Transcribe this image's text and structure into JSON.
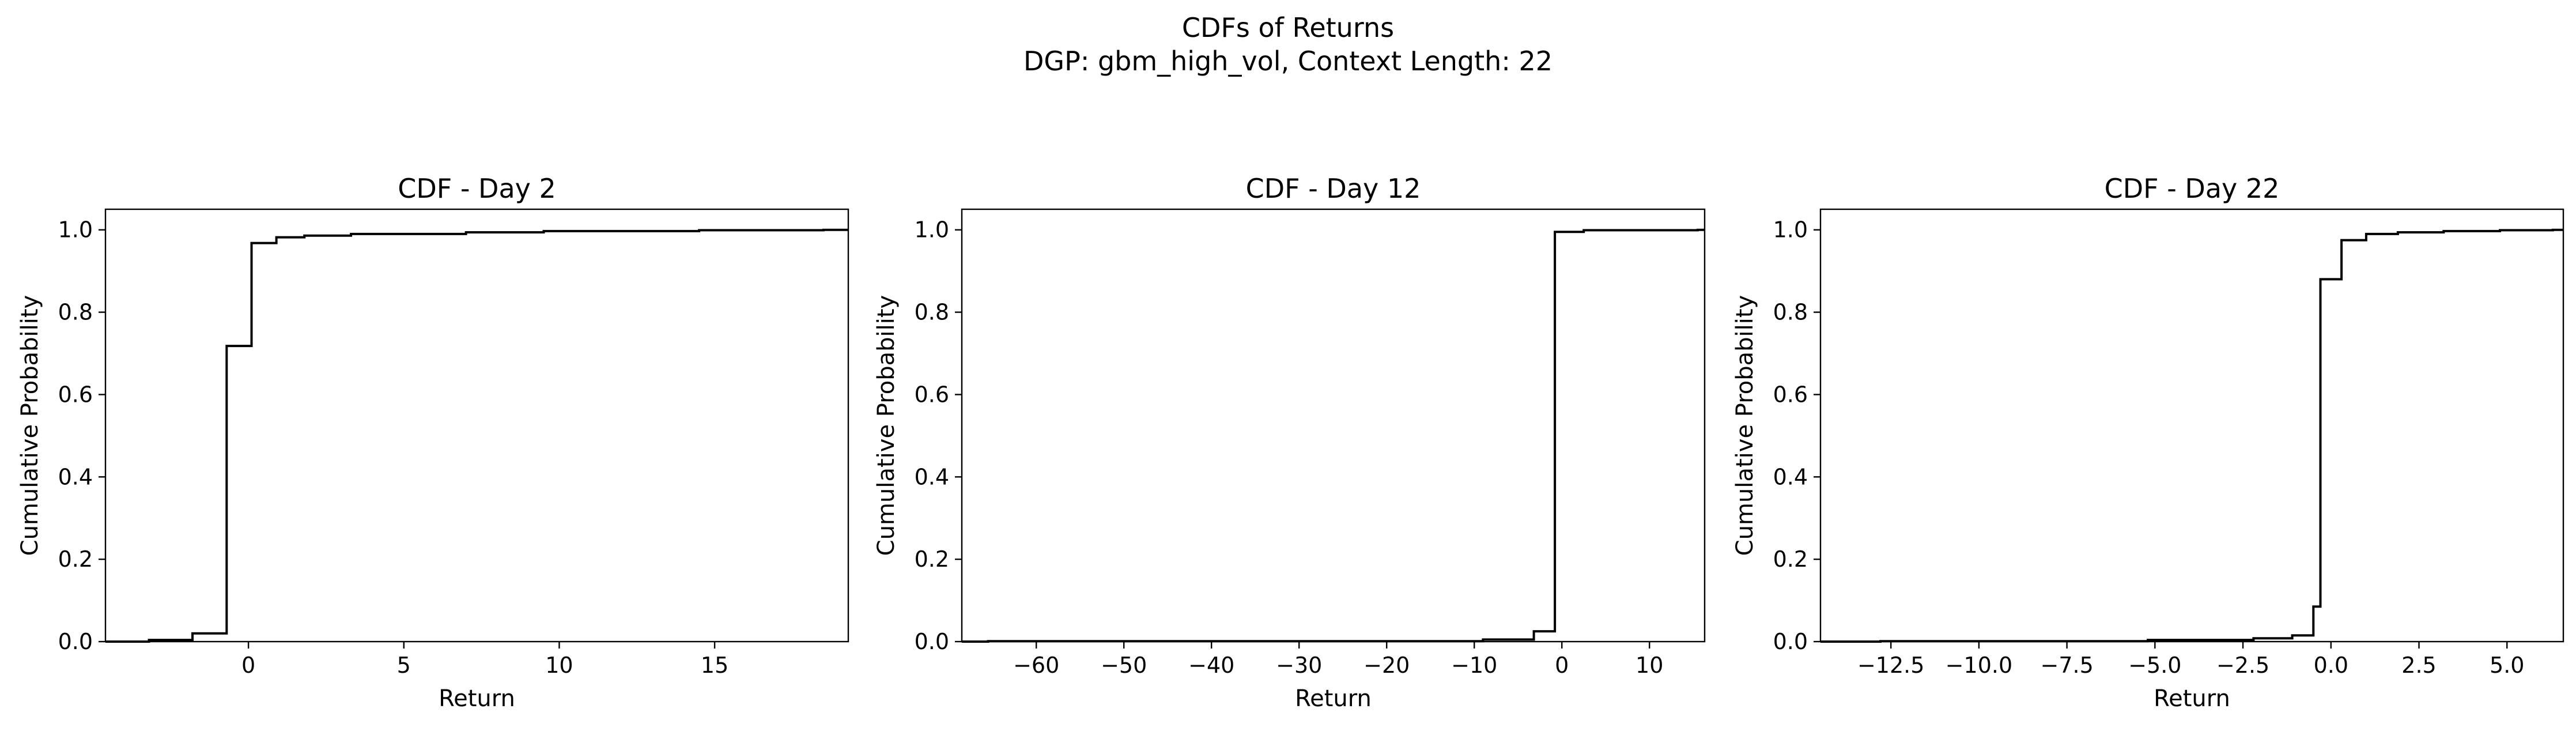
{
  "figure": {
    "title_line1": "CDFs of Returns",
    "title_line2": "DGP: gbm_high_vol, Context Length: 22"
  },
  "chart_data": [
    {
      "type": "line",
      "step": true,
      "title": "CDF - Day 2",
      "xlabel": "Return",
      "ylabel": "Cumulative Probability",
      "xlim": [
        -4.6,
        19.3
      ],
      "ylim": [
        0,
        1.05
      ],
      "xticks": [
        0,
        5,
        10,
        15
      ],
      "xtick_labels": [
        "0",
        "5",
        "10",
        "15"
      ],
      "yticks": [
        0.0,
        0.2,
        0.4,
        0.6,
        0.8,
        1.0
      ],
      "ytick_labels": [
        "0.0",
        "0.2",
        "0.4",
        "0.6",
        "0.8",
        "1.0"
      ],
      "grid": false,
      "line_color": "#000000",
      "points": [
        {
          "x": -4.6,
          "y": 0.0
        },
        {
          "x": -3.2,
          "y": 0.004
        },
        {
          "x": -1.8,
          "y": 0.02
        },
        {
          "x": -0.7,
          "y": 0.718
        },
        {
          "x": 0.1,
          "y": 0.968
        },
        {
          "x": 0.9,
          "y": 0.982
        },
        {
          "x": 1.8,
          "y": 0.986
        },
        {
          "x": 3.3,
          "y": 0.99
        },
        {
          "x": 7.0,
          "y": 0.994
        },
        {
          "x": 9.5,
          "y": 0.997
        },
        {
          "x": 14.5,
          "y": 0.999
        },
        {
          "x": 18.5,
          "y": 1.0
        },
        {
          "x": 19.3,
          "y": 1.0
        }
      ]
    },
    {
      "type": "line",
      "step": true,
      "title": "CDF - Day 12",
      "xlabel": "Return",
      "ylabel": "Cumulative Probability",
      "xlim": [
        -68.5,
        16.3
      ],
      "ylim": [
        0,
        1.05
      ],
      "xticks": [
        -60,
        -50,
        -40,
        -30,
        -20,
        -10,
        0,
        10
      ],
      "xtick_labels": [
        "−60",
        "−50",
        "−40",
        "−30",
        "−20",
        "−10",
        "0",
        "10"
      ],
      "yticks": [
        0.0,
        0.2,
        0.4,
        0.6,
        0.8,
        1.0
      ],
      "ytick_labels": [
        "0.0",
        "0.2",
        "0.4",
        "0.6",
        "0.8",
        "1.0"
      ],
      "grid": false,
      "line_color": "#000000",
      "points": [
        {
          "x": -68.5,
          "y": 0.0
        },
        {
          "x": -65.5,
          "y": 0.001
        },
        {
          "x": -9.0,
          "y": 0.005
        },
        {
          "x": -3.2,
          "y": 0.025
        },
        {
          "x": -0.8,
          "y": 0.995
        },
        {
          "x": 2.5,
          "y": 0.999
        },
        {
          "x": 15.5,
          "y": 1.0
        },
        {
          "x": 16.3,
          "y": 1.0
        }
      ]
    },
    {
      "type": "line",
      "step": true,
      "title": "CDF - Day 22",
      "xlabel": "Return",
      "ylabel": "Cumulative Probability",
      "xlim": [
        -14.5,
        6.6
      ],
      "ylim": [
        0,
        1.05
      ],
      "xticks": [
        -12.5,
        -10.0,
        -7.5,
        -5.0,
        -2.5,
        0.0,
        2.5,
        5.0
      ],
      "xtick_labels": [
        "−12.5",
        "−10.0",
        "−7.5",
        "−5.0",
        "−2.5",
        "0.0",
        "2.5",
        "5.0"
      ],
      "yticks": [
        0.0,
        0.2,
        0.4,
        0.6,
        0.8,
        1.0
      ],
      "ytick_labels": [
        "0.0",
        "0.2",
        "0.4",
        "0.6",
        "0.8",
        "1.0"
      ],
      "grid": false,
      "line_color": "#000000",
      "points": [
        {
          "x": -14.5,
          "y": 0.0
        },
        {
          "x": -12.8,
          "y": 0.001
        },
        {
          "x": -5.2,
          "y": 0.004
        },
        {
          "x": -2.2,
          "y": 0.008
        },
        {
          "x": -1.1,
          "y": 0.015
        },
        {
          "x": -0.5,
          "y": 0.085
        },
        {
          "x": -0.3,
          "y": 0.88
        },
        {
          "x": 0.3,
          "y": 0.975
        },
        {
          "x": 1.0,
          "y": 0.99
        },
        {
          "x": 1.9,
          "y": 0.994
        },
        {
          "x": 3.2,
          "y": 0.997
        },
        {
          "x": 4.8,
          "y": 0.999
        },
        {
          "x": 6.3,
          "y": 1.0
        },
        {
          "x": 6.6,
          "y": 1.0
        }
      ]
    }
  ]
}
